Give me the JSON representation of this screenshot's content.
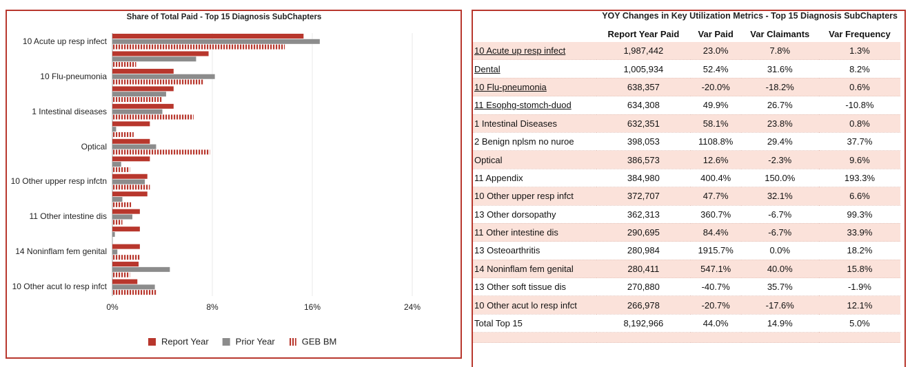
{
  "chart_data": {
    "type": "barh",
    "title": "Share of Total Paid - Top 15 Diagnosis SubChapters",
    "categories": [
      "10 Acute up resp infect",
      null,
      "10 Flu-pneumonia",
      null,
      "1 Intestinal diseases",
      null,
      "Optical",
      null,
      "10 Other upper resp infctn",
      null,
      "11 Other intestine dis",
      null,
      "14 Noninflam fem genital",
      null,
      "10 Other acut lo resp infct"
    ],
    "series": [
      {
        "name": "Report Year",
        "color": "#b8372d",
        "values": [
          15.3,
          7.7,
          4.9,
          4.9,
          4.9,
          3.0,
          3.0,
          3.0,
          2.8,
          2.8,
          2.2,
          2.2,
          2.2,
          2.1,
          2.0
        ]
      },
      {
        "name": "Prior Year",
        "color": "#8c8c8c",
        "values": [
          16.6,
          6.7,
          8.2,
          4.3,
          4.0,
          0.3,
          3.5,
          0.7,
          2.6,
          0.8,
          1.6,
          0.2,
          0.4,
          4.6,
          3.4
        ]
      },
      {
        "name": "GEB BM",
        "color": "#b8372d",
        "hatch": true,
        "values": [
          13.8,
          1.9,
          7.3,
          4.0,
          6.5,
          1.7,
          7.8,
          1.4,
          3.0,
          1.5,
          0.8,
          0.0,
          2.2,
          1.4,
          3.5
        ]
      }
    ],
    "xlim": [
      0,
      24
    ],
    "xticks": [
      {
        "value": 0,
        "label": "0%"
      },
      {
        "value": 8,
        "label": "8%"
      },
      {
        "value": 16,
        "label": "16%"
      },
      {
        "value": 24,
        "label": "24%"
      }
    ],
    "grid": true,
    "legend": "bottom"
  },
  "table": {
    "title": "YOY Changes in Key Utilization Metrics - Top 15 Diagnosis SubChapters",
    "columns": [
      "",
      "Report Year Paid",
      "Var Paid",
      "Var Claimants",
      "Var Frequency"
    ],
    "rows": [
      [
        "10 Acute up resp infect",
        "1,987,442",
        "23.0%",
        "7.8%",
        "1.3%"
      ],
      [
        "Dental",
        "1,005,934",
        "52.4%",
        "31.6%",
        "8.2%"
      ],
      [
        "10 Flu-pneumonia",
        "638,357",
        "-20.0%",
        "-18.2%",
        "0.6%"
      ],
      [
        "11 Esophg-stomch-duod",
        "634,308",
        "49.9%",
        "26.7%",
        "-10.8%"
      ],
      [
        "1 Intestinal Diseases",
        "632,351",
        "58.1%",
        "23.8%",
        "0.8%"
      ],
      [
        "2 Benign nplsm no nuroe",
        "398,053",
        "1108.8%",
        "29.4%",
        "37.7%"
      ],
      [
        "Optical",
        "386,573",
        "12.6%",
        "-2.3%",
        "9.6%"
      ],
      [
        "11 Appendix",
        "384,980",
        "400.4%",
        "150.0%",
        "193.3%"
      ],
      [
        "10 Other upper resp infct",
        "372,707",
        "47.7%",
        "32.1%",
        "6.6%"
      ],
      [
        "13 Other dorsopathy",
        "362,313",
        "360.7%",
        "-6.7%",
        "99.3%"
      ],
      [
        "11 Other intestine dis",
        "290,695",
        "84.4%",
        "-6.7%",
        "33.9%"
      ],
      [
        "13 Osteoarthritis",
        "280,984",
        "1915.7%",
        "0.0%",
        "18.2%"
      ],
      [
        "14 Noninflam fem genital",
        "280,411",
        "547.1%",
        "40.0%",
        "15.8%"
      ],
      [
        "13 Other soft tissue dis",
        "270,880",
        "-40.7%",
        "35.7%",
        "-1.9%"
      ],
      [
        "10 Other acut lo resp infct",
        "266,978",
        "-20.7%",
        "-17.6%",
        "12.1%"
      ],
      [
        "Total Top 15",
        "8,192,966",
        "44.0%",
        "14.9%",
        "5.0%"
      ]
    ]
  }
}
